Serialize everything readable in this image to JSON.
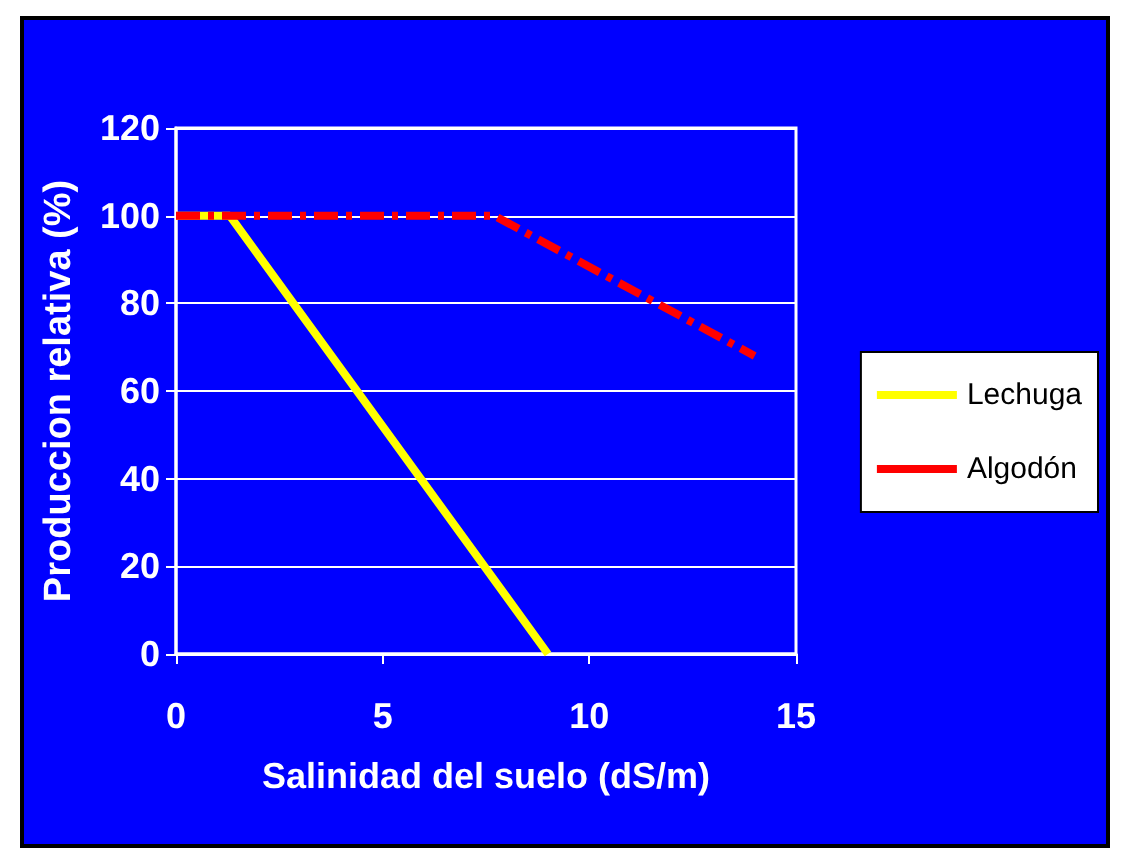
{
  "chart_data": {
    "type": "line",
    "xlabel": "Salinidad del suelo (dS/m)",
    "ylabel": "Produccion relativa (%)",
    "xlim": [
      0,
      15
    ],
    "xticks": [
      0,
      5,
      10,
      15
    ],
    "ylim": [
      0,
      120
    ],
    "yticks": [
      0,
      20,
      40,
      60,
      80,
      100,
      120
    ],
    "grid": "y",
    "legend": "right",
    "marker": "none",
    "series": [
      {
        "name": "Lechuga",
        "color": "#ffff00",
        "line_style": "solid",
        "x": [
          0,
          1.3,
          9
        ],
        "values": [
          100,
          100,
          0
        ]
      },
      {
        "name": "Algodón",
        "color": "#ff0000",
        "line_style": "dashed",
        "x": [
          0,
          7.7,
          14
        ],
        "values": [
          100,
          100,
          68
        ]
      }
    ]
  }
}
